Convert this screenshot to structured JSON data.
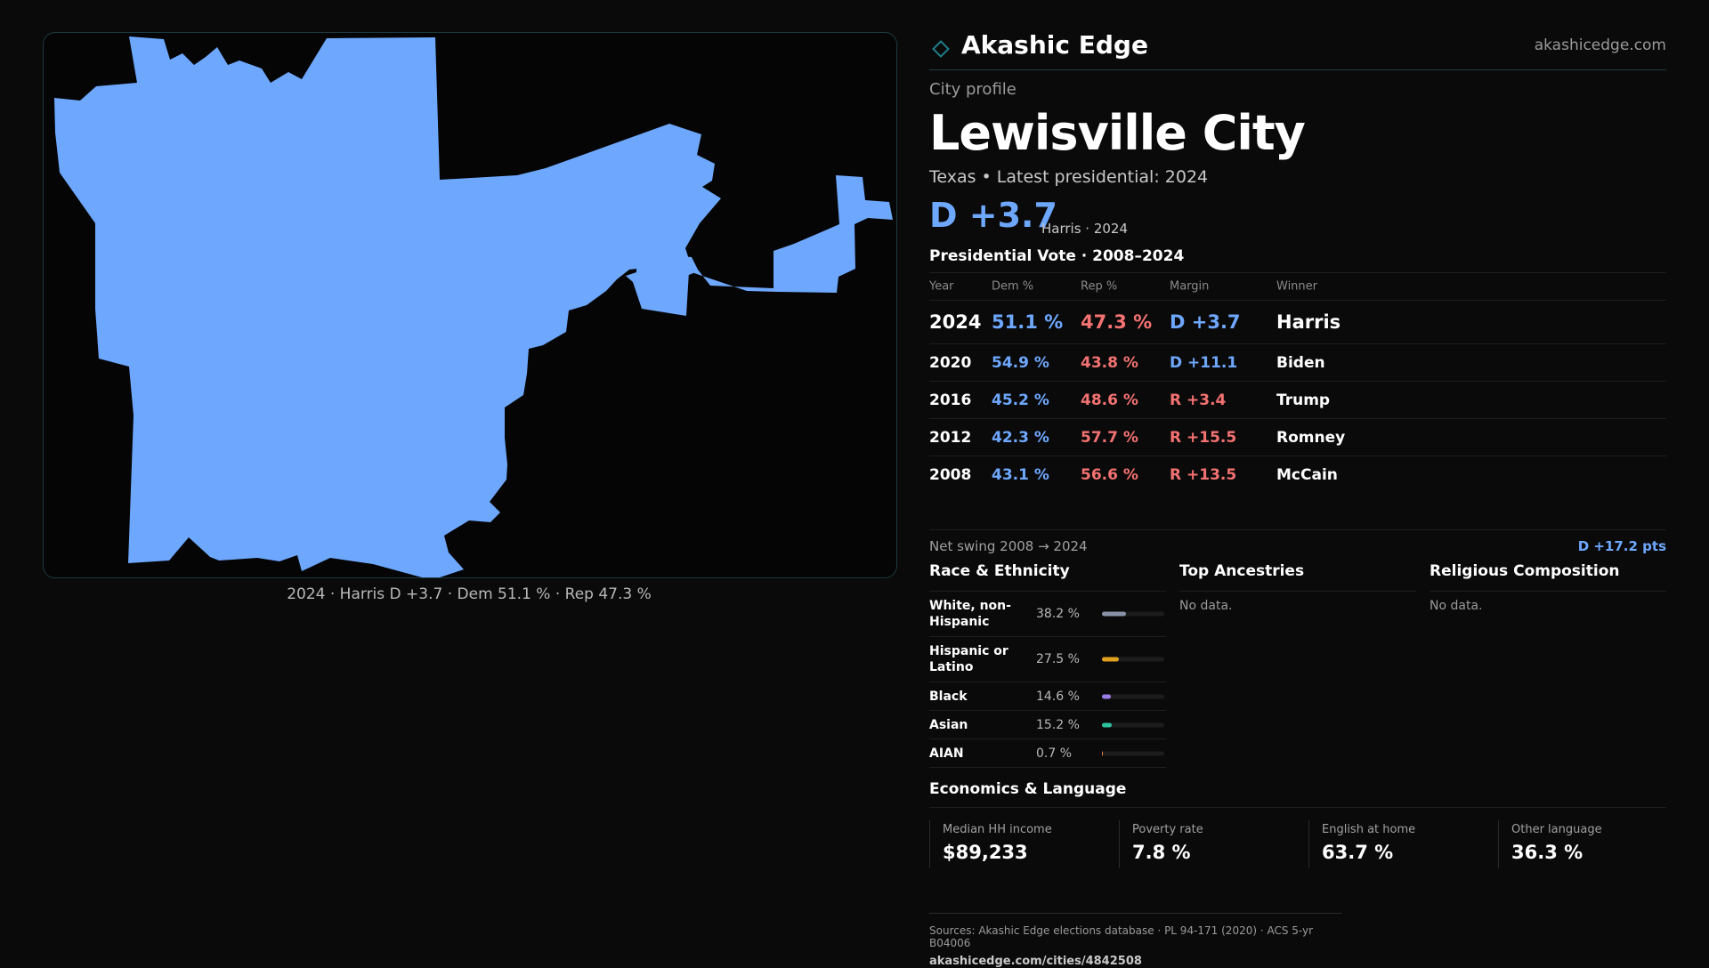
{
  "colors": {
    "dem": "#6ea8fe",
    "rep": "#f47272",
    "background": "#0a0a0a",
    "accent": "#1f7f8a"
  },
  "map": {
    "caption": "2024 · Harris D +3.7 · Dem 51.1 % · Rep 47.3 %",
    "fill_color": "#6ea8fe"
  },
  "brand": {
    "name": "Akashic Edge",
    "url": "akashicedge.com",
    "logo_icon": "diamond-logo-icon"
  },
  "profile": {
    "kicker": "City profile",
    "title": "Lewisville City",
    "meta": "Texas • Latest presidential: 2024",
    "headline_margin": "D +3.7",
    "headline_sub": "Harris · 2024"
  },
  "vote": {
    "section_title": "Presidential Vote · 2008–2024",
    "headers": {
      "year": "Year",
      "dem": "Dem %",
      "rep": "Rep %",
      "margin": "Margin",
      "winner": "Winner"
    },
    "rows": [
      {
        "year": "2024",
        "dem": "51.1 %",
        "rep": "47.3 %",
        "margin": "D +3.7",
        "winner": "Harris",
        "party": "D"
      },
      {
        "year": "2020",
        "dem": "54.9 %",
        "rep": "43.8 %",
        "margin": "D +11.1",
        "winner": "Biden",
        "party": "D"
      },
      {
        "year": "2016",
        "dem": "45.2 %",
        "rep": "48.6 %",
        "margin": "R +3.4",
        "winner": "Trump",
        "party": "R"
      },
      {
        "year": "2012",
        "dem": "42.3 %",
        "rep": "57.7 %",
        "margin": "R +15.5",
        "winner": "Romney",
        "party": "R"
      },
      {
        "year": "2008",
        "dem": "43.1 %",
        "rep": "56.6 %",
        "margin": "R +13.5",
        "winner": "McCain",
        "party": "R"
      }
    ],
    "swing_label": "Net swing 2008 → 2024",
    "swing_value": "D +17.2 pts"
  },
  "race": {
    "title": "Race & Ethnicity",
    "rows": [
      {
        "label": "White, non-Hispanic",
        "pct": "38.2 %",
        "value": 38.2,
        "color": "#8a93a8"
      },
      {
        "label": "Hispanic or Latino",
        "pct": "27.5 %",
        "value": 27.5,
        "color": "#e0a020"
      },
      {
        "label": "Black",
        "pct": "14.6 %",
        "value": 14.6,
        "color": "#9a7ee8"
      },
      {
        "label": "Asian",
        "pct": "15.2 %",
        "value": 15.2,
        "color": "#2ec4a0"
      },
      {
        "label": "AIAN",
        "pct": "0.7 %",
        "value": 0.7,
        "color": "#e08040"
      }
    ]
  },
  "ancestries": {
    "title": "Top Ancestries",
    "empty": "No data."
  },
  "religion": {
    "title": "Religious Composition",
    "empty": "No data."
  },
  "economics": {
    "title": "Economics & Language",
    "cells": [
      {
        "label": "Median HH income",
        "value": "$89,233"
      },
      {
        "label": "Poverty rate",
        "value": "7.8 %"
      },
      {
        "label": "English at home",
        "value": "63.7 %"
      },
      {
        "label": "Other language",
        "value": "36.3 %"
      }
    ]
  },
  "sources": {
    "text": "Sources: Akashic Edge elections database · PL 94-171 (2020) · ACS 5-yr B04006",
    "url": "akashicedge.com/cities/4842508"
  }
}
